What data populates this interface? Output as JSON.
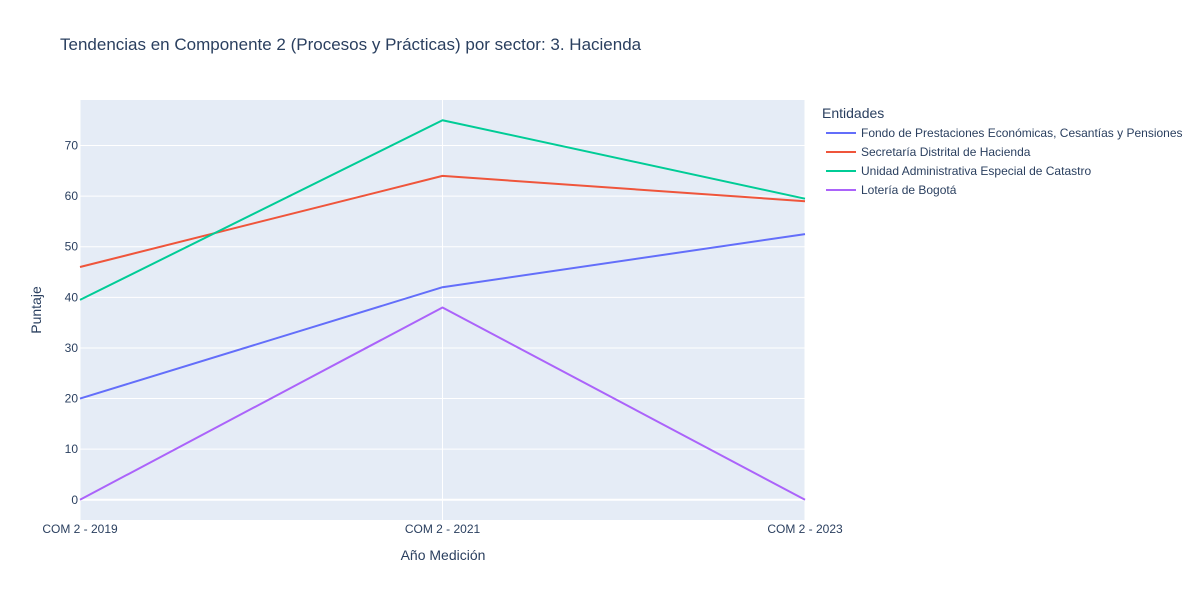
{
  "chart_data": {
    "type": "line",
    "title": "Tendencias en Componente 2 (Procesos y Prácticas) por sector: 3. Hacienda",
    "xlabel": "Año Medición",
    "ylabel": "Puntaje",
    "categories": [
      "COM 2 - 2019",
      "COM 2 - 2021",
      "COM 2 - 2023"
    ],
    "ylim": [
      -4,
      79
    ],
    "yticks": [
      0,
      10,
      20,
      30,
      40,
      50,
      60,
      70
    ],
    "grid": true,
    "legend": {
      "title": "Entidades",
      "placement": "right"
    },
    "series": [
      {
        "name": "Fondo de Prestaciones Económicas, Cesantías y Pensiones",
        "color": "#636efa",
        "values": [
          20,
          42,
          52.5
        ]
      },
      {
        "name": "Secretaría Distrital de Hacienda",
        "color": "#ef553b",
        "values": [
          46,
          64,
          59
        ]
      },
      {
        "name": "Unidad Administrativa Especial de Catastro",
        "color": "#00cc96",
        "values": [
          39.5,
          75,
          59.5
        ]
      },
      {
        "name": "Lotería de Bogotá",
        "color": "#ab63fa",
        "values": [
          0,
          38,
          0
        ]
      }
    ]
  }
}
